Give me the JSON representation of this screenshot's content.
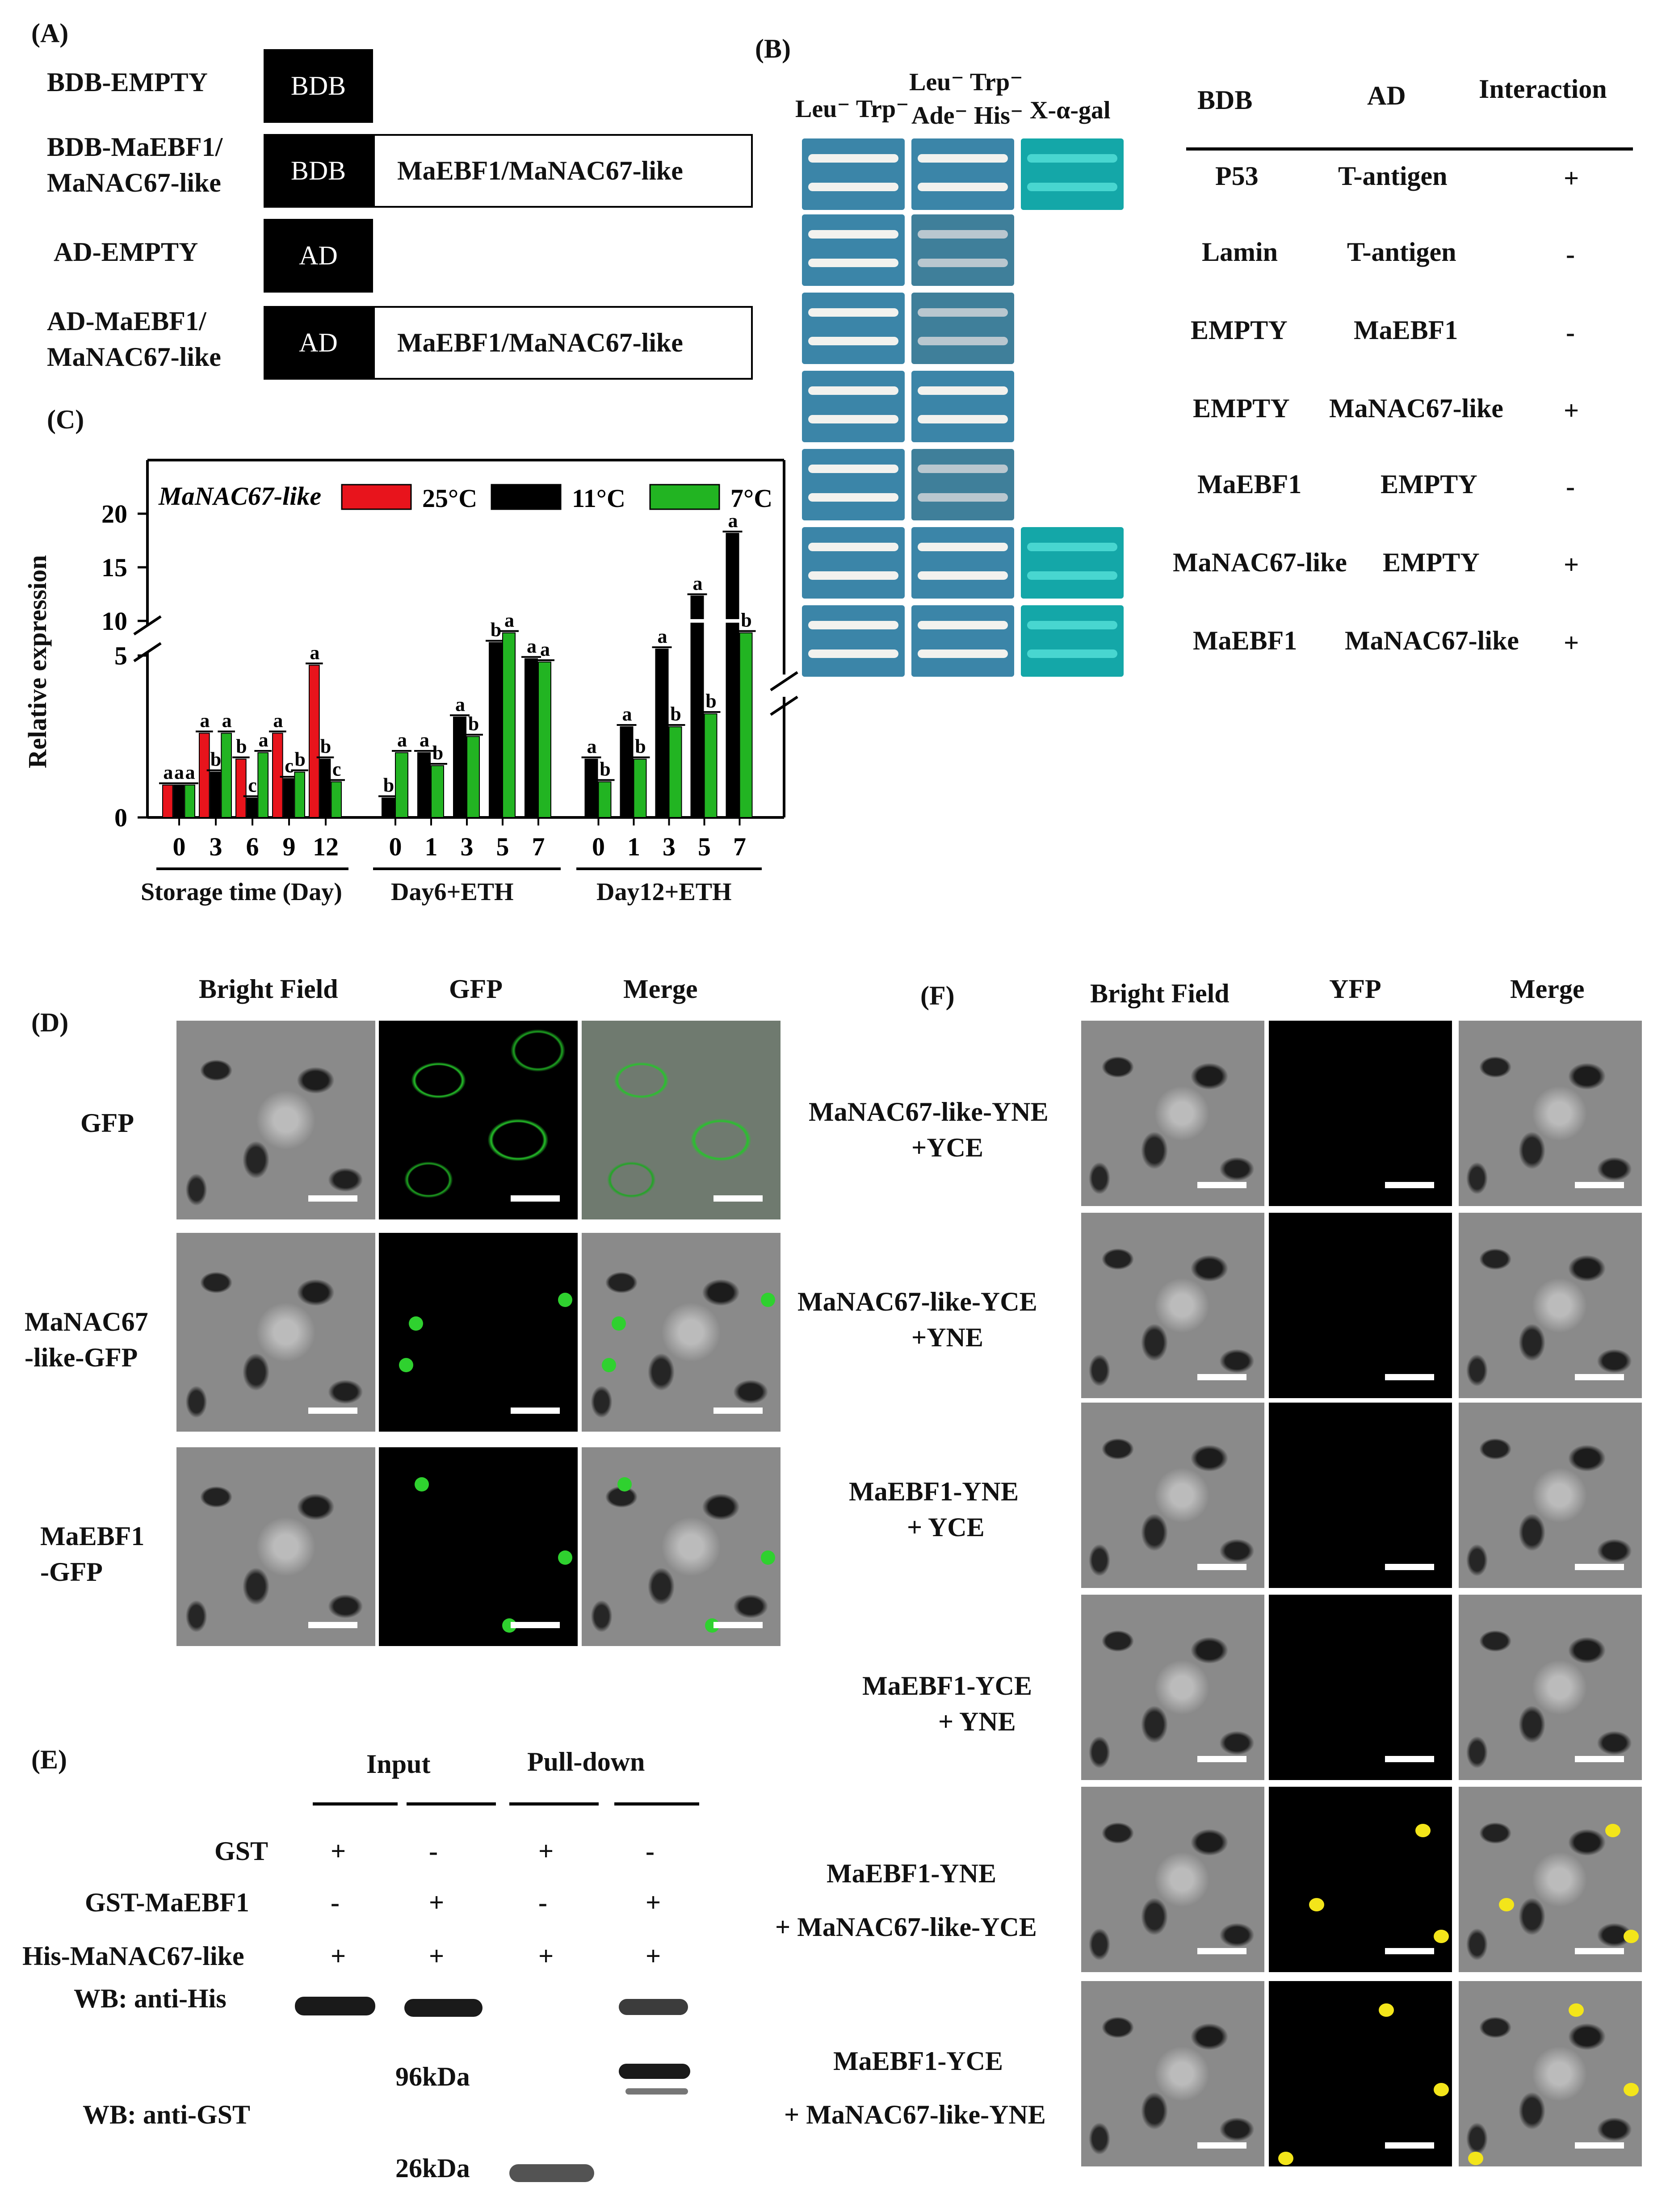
{
  "panelA": {
    "label": "(A)",
    "rows": [
      {
        "name": "BDB-EMPTY",
        "block": "BDB",
        "insert": ""
      },
      {
        "name": "BDB-MaEBF1/\nMaNAC67-like",
        "name1": "BDB-MaEBF1/",
        "name2": "MaNAC67-like",
        "block": "BDB",
        "insert": "MaEBF1/MaNAC67-like"
      },
      {
        "name": "AD-EMPTY",
        "block": "AD",
        "insert": ""
      },
      {
        "name1": "AD-MaEBF1/",
        "name2": "MaNAC67-like",
        "block": "AD",
        "insert": "MaEBF1/MaNAC67-like"
      }
    ]
  },
  "panelB": {
    "label": "(B)",
    "media": [
      "Leu⁻ Trp⁻",
      "Leu⁻ Trp⁻",
      "Ade⁻ His⁻",
      "X-α-gal"
    ],
    "table_headers": [
      "BDB",
      "AD",
      "Interaction"
    ],
    "rows": [
      {
        "bdb": "P53",
        "ad": "T-antigen",
        "interaction": "+"
      },
      {
        "bdb": "Lamin",
        "ad": "T-antigen",
        "interaction": "-"
      },
      {
        "bdb": "EMPTY",
        "ad": "MaEBF1",
        "interaction": "-"
      },
      {
        "bdb": "EMPTY",
        "ad": "MaNAC67-like",
        "interaction": "+"
      },
      {
        "bdb": "MaEBF1",
        "ad": "EMPTY",
        "interaction": "-"
      },
      {
        "bdb": "MaNAC67-like",
        "ad": "EMPTY",
        "interaction": "+"
      },
      {
        "bdb": "MaEBF1",
        "ad": "MaNAC67-like",
        "interaction": "+"
      }
    ],
    "xgal_color": "#2fb3b0"
  },
  "panelC": {
    "label": "(C)",
    "ylabel": "Relative expression",
    "gene": "MaNAC67-like",
    "legend": [
      "25°C",
      "11°C",
      "7°C"
    ],
    "group_labels": [
      "Storage time (Day)",
      "Day6+ETH",
      "Day12+ETH"
    ],
    "y_ticks": [
      "0",
      "5",
      "10",
      "15",
      "20"
    ]
  },
  "chart_data": {
    "type": "bar",
    "title": "",
    "gene": "MaNAC67-like",
    "ylabel": "Relative expression",
    "y_break": [
      6,
      10
    ],
    "ylim": [
      0,
      20
    ],
    "colors": {
      "25°C": "#e8141c",
      "11°C": "#000000",
      "7°C": "#22b422"
    },
    "groups": [
      {
        "name": "Storage time (Day)",
        "categories": [
          "0",
          "3",
          "6",
          "9",
          "12"
        ],
        "series": [
          {
            "name": "25°C",
            "values": [
              1.0,
              2.6,
              1.8,
              2.6,
              4.7
            ],
            "letters": [
              "a",
              "a",
              "b",
              "a",
              "a"
            ]
          },
          {
            "name": "11°C",
            "values": [
              1.0,
              1.4,
              0.6,
              1.2,
              1.8
            ],
            "letters": [
              "a",
              "b",
              "c",
              "c",
              "b"
            ]
          },
          {
            "name": "7°C",
            "values": [
              1.0,
              2.6,
              2.0,
              1.4,
              1.1
            ],
            "letters": [
              "a",
              "a",
              "a",
              "b",
              "c"
            ]
          }
        ]
      },
      {
        "name": "Day6+ETH",
        "categories": [
          "0",
          "1",
          "3",
          "5",
          "7"
        ],
        "series": [
          {
            "name": "11°C",
            "values": [
              0.6,
              2.0,
              3.1,
              5.4,
              4.9
            ],
            "letters": [
              "b",
              "a",
              "a",
              "b",
              "a"
            ]
          },
          {
            "name": "7°C",
            "values": [
              2.0,
              1.6,
              2.5,
              5.7,
              4.8
            ],
            "letters": [
              "a",
              "b",
              "b",
              "a",
              "a"
            ]
          }
        ]
      },
      {
        "name": "Day12+ETH",
        "categories": [
          "0",
          "1",
          "3",
          "5",
          "7"
        ],
        "series": [
          {
            "name": "11°C",
            "values": [
              1.8,
              2.8,
              5.2,
              11.5,
              17.8
            ],
            "letters": [
              "a",
              "a",
              "a",
              "a",
              "a"
            ]
          },
          {
            "name": "7°C",
            "values": [
              1.1,
              1.8,
              2.8,
              3.2,
              5.7
            ],
            "letters": [
              "b",
              "b",
              "b",
              "b",
              "b"
            ]
          }
        ]
      }
    ]
  },
  "panelD": {
    "label": "(D)",
    "cols": [
      "Bright Field",
      "GFP",
      "Merge"
    ],
    "rows": [
      {
        "l1": "GFP",
        "l2": ""
      },
      {
        "l1": "MaNAC67",
        "l2": "-like-GFP"
      },
      {
        "l1": "MaEBF1",
        "l2": "-GFP"
      }
    ]
  },
  "panelE": {
    "label": "(E)",
    "headers": [
      "Input",
      "Pull-down"
    ],
    "rows": [
      {
        "name": "GST",
        "vals": [
          "+",
          "-",
          "+",
          "-"
        ]
      },
      {
        "name": "GST-MaEBF1",
        "vals": [
          "-",
          "+",
          "-",
          "+"
        ]
      },
      {
        "name": "His-MaNAC67-like",
        "vals": [
          "+",
          "+",
          "+",
          "+"
        ]
      }
    ],
    "wb_his": "WB: anti-His",
    "wb_gst": "WB: anti-GST",
    "mw_96": "96kDa",
    "mw_26": "26kDa"
  },
  "panelF": {
    "label": "(F)",
    "cols": [
      "Bright Field",
      "YFP",
      "Merge"
    ],
    "rows": [
      {
        "l1": "MaNAC67-like-YNE",
        "l2": "+YCE"
      },
      {
        "l1": "MaNAC67-like-YCE",
        "l2": "+YNE"
      },
      {
        "l1": "MaEBF1-YNE",
        "l2": "+ YCE"
      },
      {
        "l1": "MaEBF1-YCE",
        "l2": "+ YNE"
      },
      {
        "l1": "MaEBF1-YNE",
        "l2": "+ MaNAC67-like-YCE"
      },
      {
        "l1": "MaEBF1-YCE",
        "l2": "+ MaNAC67-like-YNE"
      }
    ]
  }
}
